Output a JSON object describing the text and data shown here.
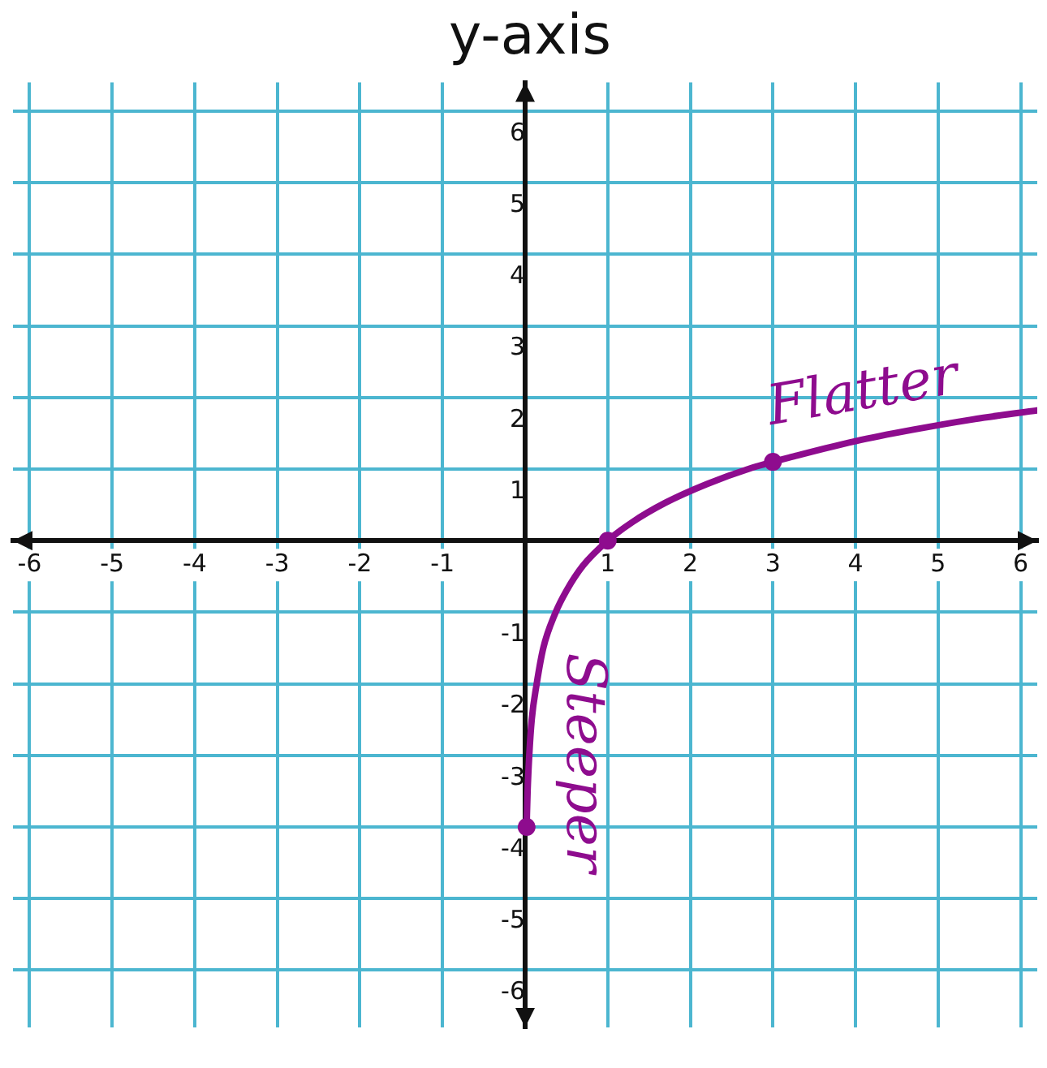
{
  "chart_data": {
    "type": "line",
    "title": "y-axis",
    "x": [
      0.018,
      0.03,
      0.05,
      0.08,
      0.14,
      0.22,
      0.37,
      0.5,
      0.7,
      1,
      1.3,
      1.7,
      2.2,
      2.7,
      3.3,
      4,
      4.7,
      5.4,
      6.2
    ],
    "series": [
      {
        "values": [
          -4.0,
          -3.5,
          -3.0,
          -2.5,
          -2.0,
          -1.5,
          -1.0,
          -0.7,
          -0.35,
          0,
          0.26,
          0.53,
          0.79,
          1.0,
          1.19,
          1.39,
          1.55,
          1.69,
          1.82
        ],
        "color": "#8e0c8e",
        "marker": "none"
      },
      {
        "type": "scatter",
        "x": [
          0.018,
          1,
          3
        ],
        "values": [
          -4.0,
          0,
          1.1
        ],
        "color": "#8e0c8e",
        "marker": "circle"
      }
    ],
    "xlim": [
      -6.2,
      6.2
    ],
    "ylim": [
      -6.8,
      6.4
    ],
    "xticks": [
      -6,
      -5,
      -4,
      -3,
      -2,
      -1,
      1,
      2,
      3,
      4,
      5,
      6
    ],
    "yticks": [
      -6,
      -5,
      -4,
      -3,
      -2,
      -1,
      1,
      2,
      3,
      4,
      5,
      6
    ],
    "grid": true,
    "annotations": [
      "Flatter",
      "Steeper"
    ]
  }
}
